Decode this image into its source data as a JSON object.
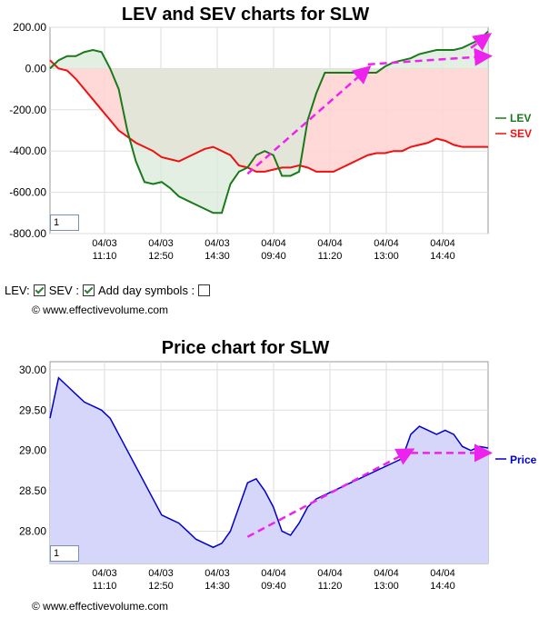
{
  "controls": {
    "lev_label": "LEV:",
    "sev_label": "SEV :",
    "day_symbols_label": "Add day symbols :",
    "lev_checked": true,
    "sev_checked": true,
    "day_symbols_checked": false
  },
  "copyright": "© www.effectivevolume.com",
  "zoom_value": "1",
  "colors": {
    "lev": "#1a7a1a",
    "sev": "#ee1111",
    "price": "#0000cc",
    "arrow": "#ee22ee",
    "lev_fill": "#d9ead9",
    "sev_fill": "#ffd4d4",
    "overlap_fill": "#dcc9b9",
    "price_fill": "#d6d6fa"
  },
  "chart_data": [
    {
      "type": "line",
      "title": "LEV and SEV charts for SLW",
      "x_tick_labels": [
        [
          "04/03",
          "11:10"
        ],
        [
          "04/03",
          "12:50"
        ],
        [
          "04/03",
          "14:30"
        ],
        [
          "04/04",
          "09:40"
        ],
        [
          "04/04",
          "11:20"
        ],
        [
          "04/04",
          "13:00"
        ],
        [
          "04/04",
          "14:40"
        ]
      ],
      "y_ticks": [
        "200.00",
        "0.00",
        "-200.00",
        "-400.00",
        "-600.00",
        "-800.00"
      ],
      "ylim": [
        -800,
        200
      ],
      "grid": true,
      "legend": "right",
      "series": [
        {
          "name": "LEV",
          "values": [
            0,
            40,
            60,
            60,
            80,
            90,
            80,
            0,
            -100,
            -300,
            -450,
            -550,
            -560,
            -550,
            -580,
            -620,
            -640,
            -660,
            -680,
            -700,
            -700,
            -560,
            -500,
            -480,
            -420,
            -400,
            -420,
            -520,
            -520,
            -500,
            -250,
            -120,
            -20,
            -20,
            -20,
            -20,
            -20,
            -20,
            -20,
            10,
            30,
            40,
            50,
            70,
            80,
            90,
            90,
            90,
            100,
            120,
            140,
            180
          ]
        },
        {
          "name": "SEV",
          "values": [
            40,
            0,
            -10,
            -50,
            -100,
            -150,
            -200,
            -250,
            -300,
            -330,
            -360,
            -380,
            -400,
            -430,
            -440,
            -450,
            -430,
            -410,
            -390,
            -380,
            -400,
            -420,
            -470,
            -480,
            -500,
            -500,
            -490,
            -480,
            -480,
            -470,
            -480,
            -500,
            -500,
            -500,
            -480,
            -460,
            -440,
            -420,
            -410,
            -410,
            -400,
            -400,
            -380,
            -370,
            -360,
            -340,
            -350,
            -370,
            -380,
            -380,
            -380,
            -380
          ]
        }
      ],
      "annotations": [
        {
          "type": "arrow",
          "from": [
            23,
            -510
          ],
          "to": [
            37,
            0
          ]
        },
        {
          "type": "arrow",
          "from": [
            37,
            20
          ],
          "to": [
            51,
            60
          ]
        },
        {
          "type": "arrow",
          "from": [
            49,
            100
          ],
          "to": [
            51,
            160
          ]
        }
      ]
    },
    {
      "type": "area",
      "title": "Price chart for SLW",
      "x_tick_labels": [
        [
          "04/03",
          "11:10"
        ],
        [
          "04/03",
          "12:50"
        ],
        [
          "04/03",
          "14:30"
        ],
        [
          "04/04",
          "09:40"
        ],
        [
          "04/04",
          "11:20"
        ],
        [
          "04/04",
          "13:00"
        ],
        [
          "04/04",
          "14:40"
        ]
      ],
      "y_ticks": [
        "30.00",
        "29.50",
        "29.00",
        "28.50",
        "28.00"
      ],
      "ylim": [
        27.6,
        30.1
      ],
      "grid": true,
      "legend": "right",
      "series": [
        {
          "name": "Price",
          "values": [
            29.4,
            29.9,
            29.8,
            29.7,
            29.6,
            29.55,
            29.5,
            29.4,
            29.2,
            29.0,
            28.8,
            28.6,
            28.4,
            28.2,
            28.15,
            28.1,
            28.0,
            27.9,
            27.85,
            27.8,
            27.85,
            28.0,
            28.3,
            28.6,
            28.65,
            28.5,
            28.3,
            28.0,
            27.95,
            28.1,
            28.3,
            28.4,
            28.45,
            28.5,
            28.55,
            28.6,
            28.65,
            28.7,
            28.75,
            28.8,
            28.85,
            28.9,
            29.2,
            29.3,
            29.25,
            29.2,
            29.25,
            29.2,
            29.05,
            29.0,
            29.05,
            29.03
          ]
        }
      ],
      "annotations": [
        {
          "type": "arrow",
          "from": [
            23,
            27.93
          ],
          "to": [
            42,
            29.0
          ]
        },
        {
          "type": "arrow",
          "from": [
            42,
            28.97
          ],
          "to": [
            51,
            28.97
          ]
        }
      ]
    }
  ]
}
